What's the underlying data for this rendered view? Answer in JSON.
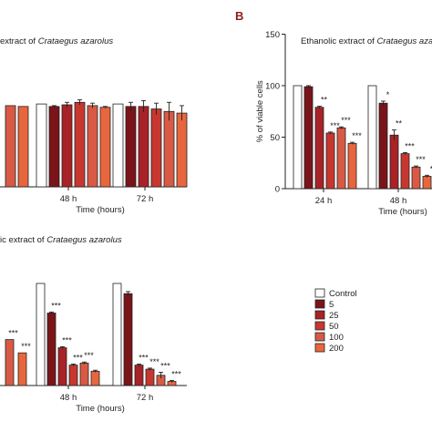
{
  "colors": {
    "control": "#ffffff",
    "5": "#7a1419",
    "25": "#a92227",
    "50": "#c7372f",
    "100": "#d85a45",
    "200": "#e8663e",
    "stroke": "#222222"
  },
  "legend": {
    "position": "right",
    "entries": [
      "Control",
      "5",
      "25",
      "50",
      "100",
      "200"
    ]
  },
  "chart_data": [
    {
      "id": "A-top-left",
      "type": "bar",
      "title_prefix": "extract of ",
      "title_italic": "Crataegus azarolus",
      "categories": [
        "48 h",
        "72 h"
      ],
      "xlabel": "Time (hours)",
      "ylabel": "",
      "ylim": [
        0,
        150
      ],
      "series": [
        {
          "name": "Control",
          "values": [
            100,
            100
          ],
          "errors": [
            0,
            0
          ],
          "sig": [
            "",
            ""
          ]
        },
        {
          "name": "5",
          "values": [
            97,
            97
          ],
          "errors": [
            1,
            5
          ],
          "sig": [
            "",
            ""
          ]
        },
        {
          "name": "25",
          "values": [
            99,
            97
          ],
          "errors": [
            3,
            7
          ],
          "sig": [
            "",
            ""
          ]
        },
        {
          "name": "50",
          "values": [
            102,
            94
          ],
          "errors": [
            3,
            7
          ],
          "sig": [
            "",
            ""
          ]
        },
        {
          "name": "100",
          "values": [
            98,
            91
          ],
          "errors": [
            3,
            11
          ],
          "sig": [
            "",
            ""
          ]
        },
        {
          "name": "200",
          "values": [
            96,
            89
          ],
          "errors": [
            1,
            9
          ],
          "sig": [
            "",
            ""
          ]
        }
      ],
      "leading_bars": [
        {
          "series": "100",
          "value": 98
        },
        {
          "series": "200",
          "value": 97
        }
      ]
    },
    {
      "id": "B",
      "type": "bar",
      "panel_letter": "B",
      "title_prefix": "Ethanolic extract of ",
      "title_italic": "Crataegus azarolus",
      "categories": [
        "24 h",
        "48 h"
      ],
      "xlabel": "Time (hours)",
      "ylabel": "% of viable cells",
      "yticks": [
        0,
        50,
        100,
        150
      ],
      "ylim": [
        0,
        150
      ],
      "series": [
        {
          "name": "Control",
          "values": [
            100,
            100
          ],
          "errors": [
            0,
            0
          ],
          "sig": [
            "",
            ""
          ]
        },
        {
          "name": "5",
          "values": [
            99,
            83
          ],
          "errors": [
            1,
            2
          ],
          "sig": [
            "",
            "*"
          ]
        },
        {
          "name": "25",
          "values": [
            79,
            52
          ],
          "errors": [
            1,
            5
          ],
          "sig": [
            "**",
            "**"
          ]
        },
        {
          "name": "50",
          "values": [
            54,
            34
          ],
          "errors": [
            1,
            1
          ],
          "sig": [
            "***",
            "***"
          ]
        },
        {
          "name": "100",
          "values": [
            59,
            21
          ],
          "errors": [
            1,
            1
          ],
          "sig": [
            "***",
            "***"
          ]
        },
        {
          "name": "200",
          "values": [
            44,
            12
          ],
          "errors": [
            1,
            1
          ],
          "sig": [
            "***",
            "*"
          ]
        }
      ]
    },
    {
      "id": "A-bottom-left",
      "type": "bar",
      "title_prefix": "ic extract of ",
      "title_italic": "Crataegus azarolus",
      "categories": [
        "48 h",
        "72 h"
      ],
      "xlabel": "Time (hours)",
      "ylabel": "",
      "ylim": [
        0,
        150
      ],
      "series": [
        {
          "name": "Control",
          "values": [
            100,
            100
          ],
          "errors": [
            0,
            0
          ],
          "sig": [
            "",
            ""
          ]
        },
        {
          "name": "5",
          "values": [
            71,
            90
          ],
          "errors": [
            1,
            2
          ],
          "sig": [
            "***",
            ""
          ]
        },
        {
          "name": "25",
          "values": [
            37,
            20
          ],
          "errors": [
            1,
            1
          ],
          "sig": [
            "***",
            "***"
          ]
        },
        {
          "name": "50",
          "values": [
            20,
            16
          ],
          "errors": [
            1,
            1
          ],
          "sig": [
            "***",
            "***"
          ]
        },
        {
          "name": "100",
          "values": [
            22,
            10
          ],
          "errors": [
            1,
            3
          ],
          "sig": [
            "***",
            "***"
          ]
        },
        {
          "name": "200",
          "values": [
            14,
            4
          ],
          "errors": [
            1,
            1
          ],
          "sig": [
            "",
            "***"
          ]
        }
      ],
      "leading_bars": [
        {
          "series": "100",
          "value": 45,
          "sig": "***"
        },
        {
          "series": "200",
          "value": 32,
          "sig": "***"
        }
      ]
    }
  ]
}
